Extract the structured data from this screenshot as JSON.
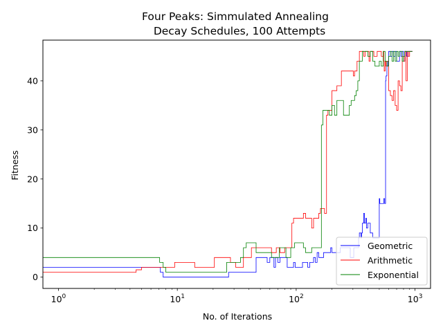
{
  "chart_data": {
    "type": "line",
    "title_line1": "Four Peaks: Simmulated Annealing",
    "title_line2": "Decay Schedules, 100 Attempts",
    "xlabel": "No. of Iterations",
    "ylabel": "Fitness",
    "xscale": "log",
    "xlim": [
      0.74,
      1350
    ],
    "ylim": [
      -2.3,
      48.3
    ],
    "x_ticks": [
      {
        "value": 1,
        "base": "10",
        "exp": "0"
      },
      {
        "value": 10,
        "base": "10",
        "exp": "1"
      },
      {
        "value": 100,
        "base": "10",
        "exp": "2"
      },
      {
        "value": 1000,
        "base": "10",
        "exp": "3"
      }
    ],
    "y_ticks": [
      0,
      10,
      20,
      30,
      40
    ],
    "legend_position": "lower right",
    "series": [
      {
        "name": "Geometric",
        "color": "#0000ff",
        "points": [
          [
            0.74,
            2
          ],
          [
            5,
            2
          ],
          [
            5.5,
            2
          ],
          [
            6.8,
            2
          ],
          [
            7.2,
            1
          ],
          [
            7.6,
            0
          ],
          [
            10,
            0
          ],
          [
            15,
            0
          ],
          [
            22,
            0
          ],
          [
            26,
            0
          ],
          [
            27,
            1
          ],
          [
            35,
            1
          ],
          [
            45,
            1
          ],
          [
            46,
            4
          ],
          [
            55,
            4
          ],
          [
            57,
            3
          ],
          [
            60,
            4
          ],
          [
            63,
            4
          ],
          [
            65,
            2
          ],
          [
            67,
            4
          ],
          [
            70,
            3
          ],
          [
            73,
            4
          ],
          [
            80,
            4
          ],
          [
            84,
            2
          ],
          [
            88,
            2
          ],
          [
            92,
            2
          ],
          [
            95,
            3
          ],
          [
            98,
            2
          ],
          [
            110,
            2
          ],
          [
            113,
            3
          ],
          [
            120,
            3
          ],
          [
            125,
            2
          ],
          [
            130,
            3
          ],
          [
            140,
            4
          ],
          [
            145,
            3
          ],
          [
            150,
            5
          ],
          [
            155,
            4
          ],
          [
            165,
            4
          ],
          [
            170,
            5
          ],
          [
            190,
            5
          ],
          [
            195,
            6
          ],
          [
            200,
            5
          ],
          [
            230,
            5
          ],
          [
            235,
            6
          ],
          [
            280,
            6
          ],
          [
            285,
            4
          ],
          [
            300,
            4
          ],
          [
            305,
            6
          ],
          [
            330,
            6
          ],
          [
            335,
            8
          ],
          [
            340,
            9
          ],
          [
            350,
            8
          ],
          [
            355,
            9
          ],
          [
            360,
            11
          ],
          [
            370,
            13
          ],
          [
            375,
            11
          ],
          [
            385,
            12
          ],
          [
            390,
            10
          ],
          [
            400,
            11
          ],
          [
            410,
            11
          ],
          [
            420,
            9
          ],
          [
            440,
            8
          ],
          [
            460,
            8
          ],
          [
            480,
            8
          ],
          [
            500,
            16
          ],
          [
            505,
            15
          ],
          [
            520,
            15
          ],
          [
            540,
            15
          ],
          [
            545,
            16
          ],
          [
            555,
            15
          ],
          [
            560,
            15
          ],
          [
            565,
            40
          ],
          [
            570,
            41
          ],
          [
            580,
            43
          ],
          [
            590,
            44
          ],
          [
            600,
            46
          ],
          [
            620,
            45
          ],
          [
            640,
            46
          ],
          [
            660,
            45
          ],
          [
            680,
            46
          ],
          [
            700,
            44
          ],
          [
            720,
            44
          ],
          [
            740,
            46
          ],
          [
            760,
            45
          ],
          [
            780,
            46
          ],
          [
            800,
            44
          ],
          [
            820,
            46
          ],
          [
            850,
            45
          ],
          [
            880,
            46
          ],
          [
            900,
            46
          ],
          [
            950,
            46
          ]
        ]
      },
      {
        "name": "Arithmetic",
        "color": "#ff0000",
        "points": [
          [
            0.74,
            1
          ],
          [
            2,
            1
          ],
          [
            4,
            1
          ],
          [
            4.5,
            1.5
          ],
          [
            5,
            2
          ],
          [
            6,
            2
          ],
          [
            8,
            2
          ],
          [
            9,
            2
          ],
          [
            9.5,
            3
          ],
          [
            11,
            3
          ],
          [
            13,
            3
          ],
          [
            14,
            2
          ],
          [
            18,
            2
          ],
          [
            20,
            2
          ],
          [
            20.5,
            4
          ],
          [
            27,
            4
          ],
          [
            28,
            3
          ],
          [
            30,
            3
          ],
          [
            31,
            2
          ],
          [
            35,
            2
          ],
          [
            36,
            4
          ],
          [
            40,
            4
          ],
          [
            42,
            6
          ],
          [
            55,
            6
          ],
          [
            60,
            6
          ],
          [
            62,
            5
          ],
          [
            66,
            5
          ],
          [
            68,
            6
          ],
          [
            72,
            6
          ],
          [
            73,
            5
          ],
          [
            78,
            5
          ],
          [
            80,
            6
          ],
          [
            88,
            6
          ],
          [
            90,
            6
          ],
          [
            92,
            11
          ],
          [
            95,
            12
          ],
          [
            110,
            12
          ],
          [
            115,
            13
          ],
          [
            120,
            12
          ],
          [
            130,
            12
          ],
          [
            135,
            10
          ],
          [
            140,
            12
          ],
          [
            150,
            12
          ],
          [
            155,
            13
          ],
          [
            160,
            14
          ],
          [
            170,
            14
          ],
          [
            173,
            13
          ],
          [
            178,
            13
          ],
          [
            180,
            33
          ],
          [
            185,
            34
          ],
          [
            190,
            34
          ],
          [
            200,
            38
          ],
          [
            210,
            38
          ],
          [
            220,
            39
          ],
          [
            230,
            39
          ],
          [
            240,
            42
          ],
          [
            250,
            42
          ],
          [
            300,
            42
          ],
          [
            303,
            41
          ],
          [
            310,
            42
          ],
          [
            320,
            42
          ],
          [
            325,
            44
          ],
          [
            335,
            44
          ],
          [
            340,
            46
          ],
          [
            360,
            46
          ],
          [
            370,
            45
          ],
          [
            380,
            46
          ],
          [
            400,
            46
          ],
          [
            410,
            44
          ],
          [
            420,
            46
          ],
          [
            450,
            45
          ],
          [
            480,
            46
          ],
          [
            500,
            46
          ],
          [
            520,
            45
          ],
          [
            540,
            46
          ],
          [
            545,
            44
          ],
          [
            550,
            42
          ],
          [
            560,
            44
          ],
          [
            570,
            43
          ],
          [
            580,
            44
          ],
          [
            600,
            38
          ],
          [
            620,
            37
          ],
          [
            640,
            36
          ],
          [
            660,
            38
          ],
          [
            680,
            35
          ],
          [
            700,
            34
          ],
          [
            720,
            40
          ],
          [
            740,
            39
          ],
          [
            760,
            38
          ],
          [
            780,
            45
          ],
          [
            800,
            44
          ],
          [
            820,
            46
          ],
          [
            840,
            40
          ],
          [
            860,
            46
          ],
          [
            880,
            45
          ],
          [
            900,
            46
          ],
          [
            950,
            46
          ]
        ]
      },
      {
        "name": "Exponential",
        "color": "#008000",
        "points": [
          [
            0.74,
            4
          ],
          [
            3,
            4
          ],
          [
            6.9,
            4
          ],
          [
            7.1,
            3
          ],
          [
            7.6,
            2
          ],
          [
            8,
            1
          ],
          [
            15,
            1
          ],
          [
            25,
            1
          ],
          [
            26,
            3
          ],
          [
            33,
            3
          ],
          [
            34,
            4
          ],
          [
            36,
            6
          ],
          [
            38,
            7
          ],
          [
            45,
            7
          ],
          [
            46,
            5
          ],
          [
            55,
            5
          ],
          [
            60,
            5
          ],
          [
            62,
            4
          ],
          [
            70,
            4
          ],
          [
            72,
            6
          ],
          [
            80,
            6
          ],
          [
            82,
            4
          ],
          [
            88,
            4
          ],
          [
            90,
            6
          ],
          [
            95,
            6
          ],
          [
            97,
            7
          ],
          [
            110,
            7
          ],
          [
            115,
            6
          ],
          [
            120,
            5
          ],
          [
            130,
            5
          ],
          [
            135,
            6
          ],
          [
            140,
            6
          ],
          [
            160,
            6
          ],
          [
            163,
            31
          ],
          [
            168,
            34
          ],
          [
            180,
            34
          ],
          [
            190,
            33
          ],
          [
            200,
            35
          ],
          [
            210,
            33
          ],
          [
            220,
            36
          ],
          [
            240,
            36
          ],
          [
            250,
            33
          ],
          [
            270,
            33
          ],
          [
            280,
            35
          ],
          [
            290,
            36
          ],
          [
            300,
            36
          ],
          [
            310,
            37
          ],
          [
            320,
            38
          ],
          [
            330,
            40
          ],
          [
            340,
            44
          ],
          [
            360,
            46
          ],
          [
            380,
            46
          ],
          [
            400,
            45
          ],
          [
            420,
            46
          ],
          [
            440,
            44
          ],
          [
            460,
            43
          ],
          [
            480,
            43
          ],
          [
            500,
            44
          ],
          [
            520,
            43
          ],
          [
            540,
            46
          ],
          [
            560,
            44
          ],
          [
            580,
            43
          ],
          [
            600,
            45
          ],
          [
            620,
            46
          ],
          [
            640,
            44
          ],
          [
            660,
            46
          ],
          [
            680,
            44
          ],
          [
            700,
            46
          ],
          [
            720,
            45
          ],
          [
            740,
            46
          ],
          [
            760,
            46
          ],
          [
            780,
            44
          ],
          [
            800,
            45
          ],
          [
            820,
            46
          ],
          [
            850,
            46
          ],
          [
            900,
            46
          ],
          [
            950,
            46
          ]
        ]
      }
    ]
  }
}
